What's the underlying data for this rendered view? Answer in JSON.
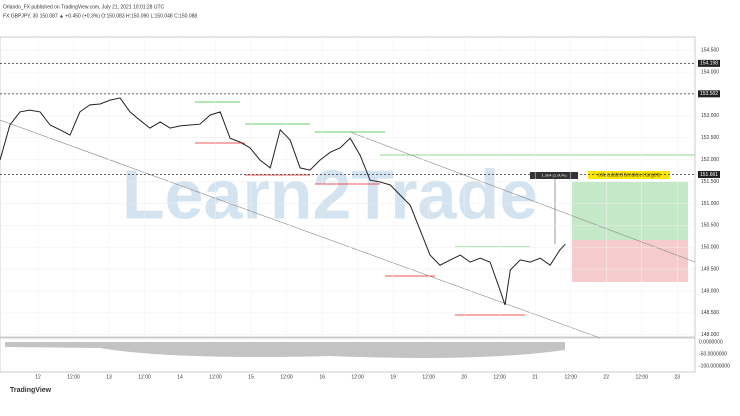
{
  "header": {
    "line1": "Orlando_FX published on TradingView.com, July 21, 2021 10:01:28 UTC",
    "line2": "FX:GBPJPY, 30  150.087 ▲ +0.450 (+0.3%) O:150.083 H:150.090 L:150.048 C:150.088"
  },
  "footer": "TradingView",
  "watermark": "Learn2Trade",
  "chart_data": {
    "type": "line",
    "annotation": "coluculated breakout targets",
    "measure_label": "1.504 (1.00%)",
    "color": "#222222",
    "x": [
      -1.07,
      -0.79,
      -0.51,
      -0.23,
      0.06,
      0.34,
      0.62,
      0.9,
      1.18,
      1.46,
      1.75,
      2.03,
      2.31,
      2.59,
      2.87,
      3.15,
      3.44,
      3.72,
      4.0,
      4.28,
      4.56,
      4.85,
      5.13,
      5.41,
      5.69,
      5.97,
      6.25,
      6.54,
      6.82,
      7.1,
      7.38,
      7.66,
      7.94,
      8.23,
      8.51,
      8.79,
      9.07,
      9.35,
      9.63,
      9.92,
      10.2,
      10.48,
      10.76,
      11.04,
      11.32,
      11.61,
      11.89,
      12.17,
      12.45,
      12.73,
      13.01,
      13.15,
      13.3,
      13.58,
      13.86,
      14.14,
      14.42,
      14.7,
      14.85
    ],
    "values": [
      151.99,
      152.79,
      153.09,
      153.13,
      153.09,
      152.79,
      152.68,
      152.56,
      153.09,
      153.25,
      153.27,
      153.36,
      153.41,
      153.09,
      152.9,
      152.72,
      152.86,
      152.72,
      152.77,
      152.79,
      152.81,
      153.02,
      153.09,
      152.49,
      152.4,
      152.27,
      151.99,
      151.81,
      152.68,
      152.45,
      151.81,
      151.76,
      151.99,
      152.17,
      152.27,
      152.49,
      152.1,
      151.53,
      151.49,
      151.42,
      151.19,
      150.96,
      150.39,
      149.82,
      149.59,
      149.71,
      149.82,
      149.66,
      149.75,
      149.66,
      149.02,
      148.68,
      149.48,
      149.71,
      149.66,
      149.75,
      149.59,
      149.94,
      150.07
    ],
    "xlim": [
      -1.07,
      18.5
    ],
    "xticks": [
      {
        "value": 0,
        "label": "12"
      },
      {
        "value": 1,
        "label": "12:00"
      },
      {
        "value": 2,
        "label": "13"
      },
      {
        "value": 3,
        "label": "12:00"
      },
      {
        "value": 4,
        "label": "14"
      },
      {
        "value": 5,
        "label": "12:00"
      },
      {
        "value": 6,
        "label": "15"
      },
      {
        "value": 7,
        "label": "12:00"
      },
      {
        "value": 8,
        "label": "16"
      },
      {
        "value": 9,
        "label": "12:00"
      },
      {
        "value": 10,
        "label": "19"
      },
      {
        "value": 11,
        "label": "12:00"
      },
      {
        "value": 12,
        "label": "20"
      },
      {
        "value": 13,
        "label": "12:00"
      },
      {
        "value": 14,
        "label": "21"
      },
      {
        "value": 15,
        "label": "12:00"
      },
      {
        "value": 16,
        "label": "22"
      },
      {
        "value": 17,
        "label": "12:00"
      },
      {
        "value": 18,
        "label": "23"
      }
    ],
    "ylim": [
      147.95,
      154.8
    ],
    "yticks": [
      {
        "value": 148,
        "label": "148.000"
      },
      {
        "value": 148.5,
        "label": "148.500"
      },
      {
        "value": 149,
        "label": "149.000"
      },
      {
        "value": 149.5,
        "label": "149.500"
      },
      {
        "value": 150,
        "label": "150.000"
      },
      {
        "value": 150.5,
        "label": "150.500"
      },
      {
        "value": 151,
        "label": "151.000"
      },
      {
        "value": 151.5,
        "label": "151.500"
      },
      {
        "value": 152,
        "label": "152.000"
      },
      {
        "value": 152.5,
        "label": "152.500"
      },
      {
        "value": 153,
        "label": "153.000"
      },
      {
        "value": 153.5,
        "label": "153.500"
      },
      {
        "value": 154,
        "label": "154.000"
      },
      {
        "value": 154.5,
        "label": "154.500"
      }
    ],
    "levels": [
      154.198,
      153.502,
      151.661
    ],
    "indicator_labels": [
      "0.0000000",
      "-50.0000000",
      "-100.0000000"
    ],
    "grid": true
  }
}
